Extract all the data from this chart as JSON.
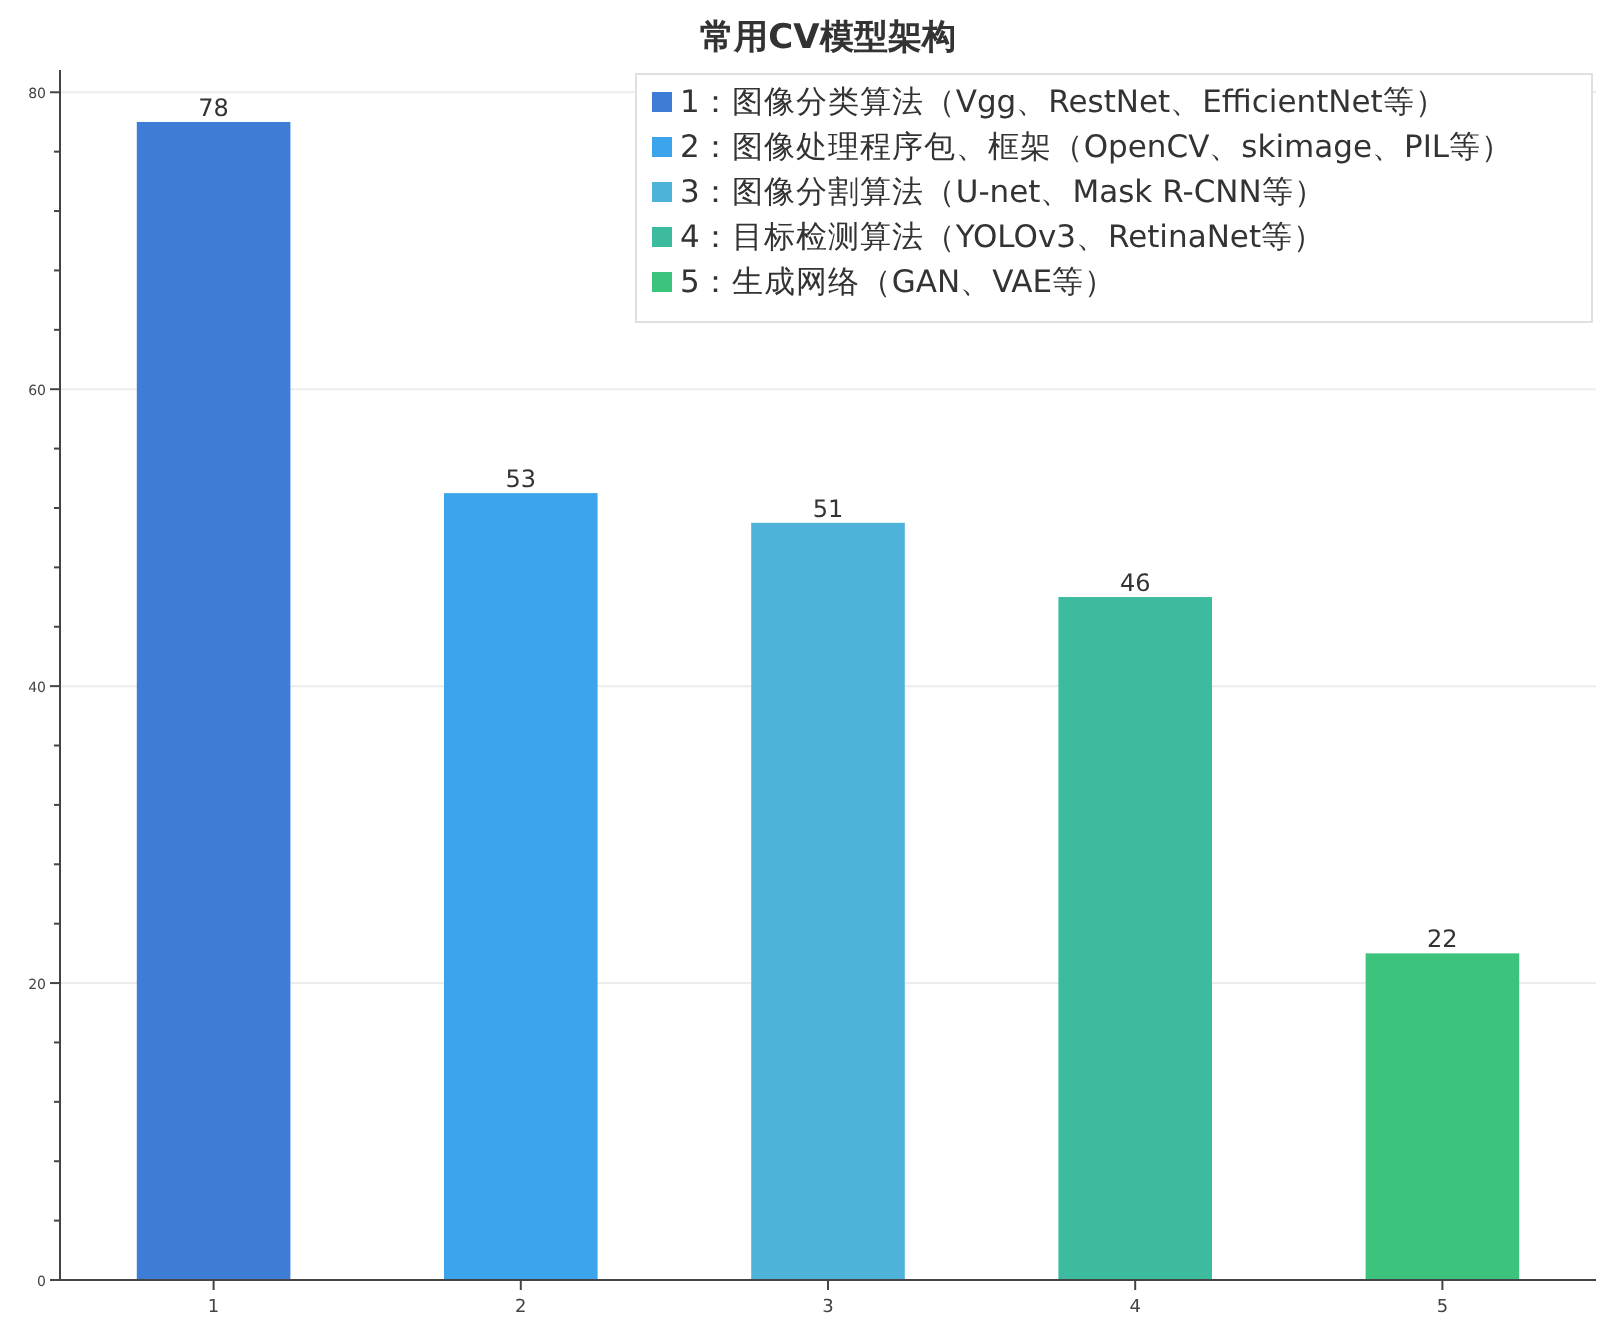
{
  "chart_data": {
    "type": "bar",
    "title": "常用CV模型架构",
    "categories": [
      "1",
      "2",
      "3",
      "4",
      "5"
    ],
    "series": [
      {
        "name": "1：图像分类算法（Vgg、RestNet、EfficientNet等）",
        "color": "#3e7dd6",
        "values": [
          78,
          null,
          null,
          null,
          null
        ]
      },
      {
        "name": "2：图像处理程序包、框架（OpenCV、skimage、PIL等）",
        "color": "#3ba4ea",
        "values": [
          null,
          53,
          null,
          null,
          null
        ]
      },
      {
        "name": "3：图像分割算法（U-net、Mask R-CNN等）",
        "color": "#4fb2d8",
        "values": [
          null,
          null,
          51,
          null,
          null
        ]
      },
      {
        "name": "4：目标检测算法（YOLOv3、RetinaNet等）",
        "color": "#3cbb9f",
        "values": [
          null,
          null,
          null,
          46,
          null
        ]
      },
      {
        "name": "5：生成网络（GAN、VAE等）",
        "color": "#3cc47c",
        "values": [
          null,
          null,
          null,
          null,
          22
        ]
      }
    ],
    "ylim": [
      0,
      81.5
    ],
    "yticks": [
      0,
      {
        "value": 4,
        "label": null
      },
      {
        "value": 8,
        "label": null
      },
      {
        "value": 12,
        "label": null
      },
      {
        "value": 16,
        "label": null
      },
      20,
      {
        "value": 24,
        "label": null
      },
      {
        "value": 28,
        "label": null
      },
      {
        "value": 32,
        "label": null
      },
      {
        "value": 36,
        "label": null
      },
      40,
      {
        "value": 44,
        "label": null
      },
      {
        "value": 48,
        "label": null
      },
      {
        "value": 52,
        "label": null
      },
      {
        "value": 56,
        "label": null
      },
      60,
      {
        "value": 64,
        "label": null
      },
      {
        "value": 68,
        "label": null
      },
      {
        "value": 72,
        "label": null
      },
      {
        "value": 76,
        "label": null
      },
      80
    ],
    "grid": "y",
    "legend": "top right",
    "data_labels": true
  }
}
